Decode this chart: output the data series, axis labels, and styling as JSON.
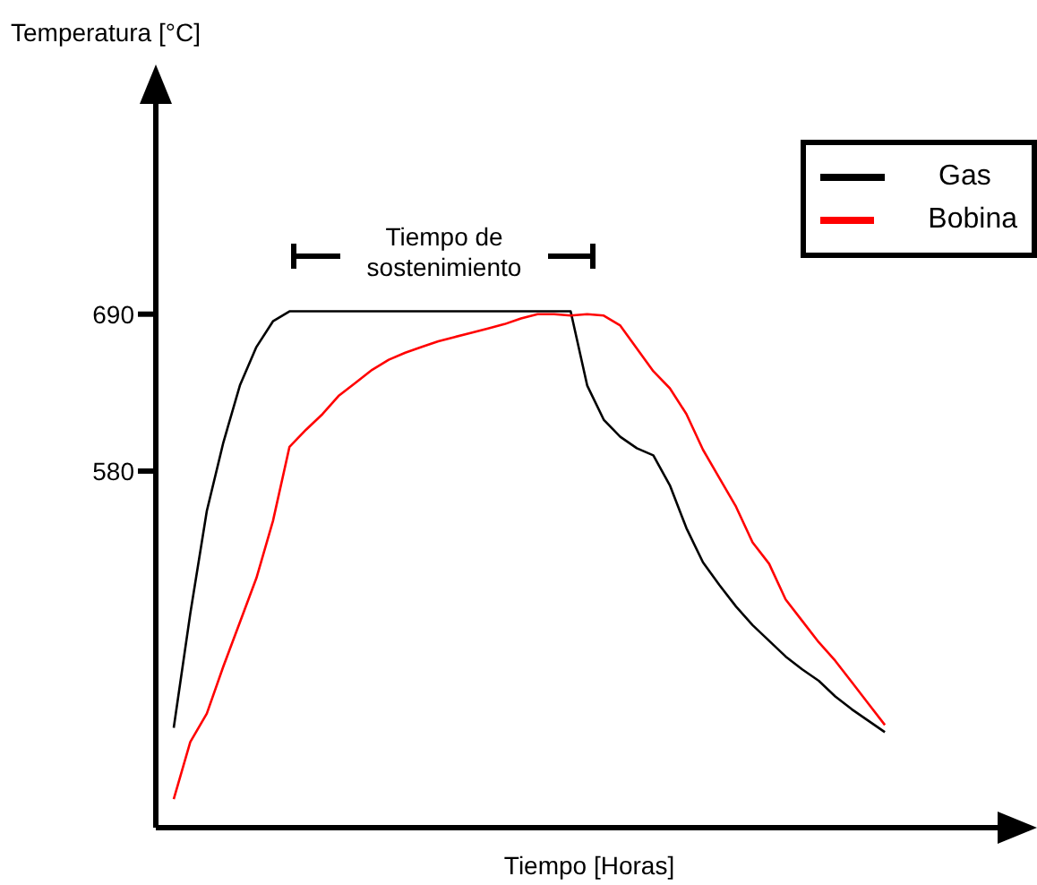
{
  "chart_data": {
    "type": "line",
    "xlabel": "Tiempo [Horas]",
    "ylabel": "Temperatura [°C]",
    "categories": [
      null,
      null,
      null,
      null,
      null,
      null,
      null,
      null,
      null,
      null,
      null,
      null,
      null,
      null,
      null,
      null,
      null,
      null,
      null,
      null,
      null,
      null,
      null,
      null,
      null,
      null,
      null,
      null,
      null,
      null,
      null,
      null,
      null,
      null,
      null,
      null,
      null,
      null,
      null,
      null,
      null,
      null,
      null,
      null,
      null,
      null,
      null,
      null
    ],
    "series": [
      {
        "name": "Gas",
        "color": "#000000",
        "values": [
          400,
          480,
          552,
          600,
          640,
          667,
          685,
          692,
          692,
          692,
          692,
          692,
          692,
          692,
          692,
          692,
          692,
          692,
          692,
          692,
          692,
          692,
          692,
          692,
          692,
          640,
          616,
          604,
          596,
          591,
          570,
          540,
          516,
          500,
          485,
          472,
          461,
          450,
          441,
          433,
          422,
          413,
          405,
          397,
          null,
          null,
          null,
          null
        ]
      },
      {
        "name": "Bobina",
        "color": "#ff0000",
        "values": [
          350,
          390,
          410,
          443,
          474,
          505,
          545,
          597,
          609,
          620,
          633,
          642,
          651,
          658,
          663,
          667,
          671,
          674,
          677,
          680,
          683,
          687,
          690,
          690,
          689,
          690,
          689,
          682,
          666,
          650,
          638,
          620,
          595,
          575,
          555,
          530,
          515,
          490,
          475,
          460,
          447,
          432,
          417,
          402,
          null,
          null,
          null,
          null
        ]
      }
    ],
    "ylim": [
      330,
      860
    ],
    "yticks": [
      580,
      690
    ],
    "grid": false,
    "legend": "top right",
    "marker": "none",
    "line_style": "solid",
    "tick_labels": "y",
    "annotations": [
      "Tiempo de sostenimiento"
    ]
  }
}
